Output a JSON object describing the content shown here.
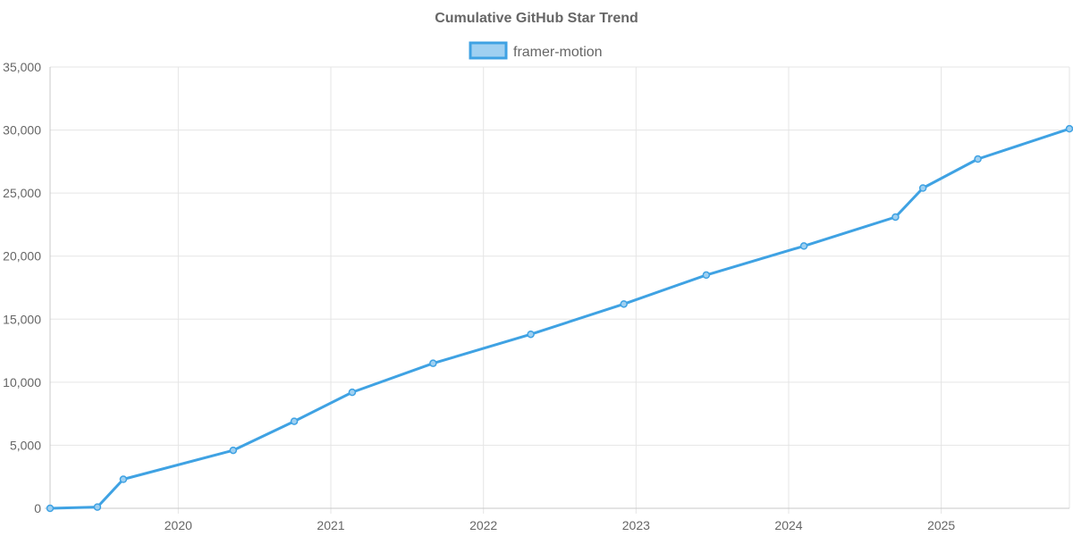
{
  "chart_data": {
    "type": "line",
    "title": "Cumulative GitHub Star Trend",
    "xlabel": "",
    "ylabel": "",
    "grid": true,
    "legend_position": "top-center",
    "x_axis": {
      "type": "time",
      "min": 2019.16,
      "max": 2025.84,
      "tick_values": [
        2020,
        2021,
        2022,
        2023,
        2024,
        2025
      ],
      "tick_labels": [
        "2020",
        "2021",
        "2022",
        "2023",
        "2024",
        "2025"
      ]
    },
    "y_axis": {
      "min": 0,
      "max": 35000,
      "tick_values": [
        0,
        5000,
        10000,
        15000,
        20000,
        25000,
        30000,
        35000
      ],
      "tick_labels": [
        "0",
        "5,000",
        "10,000",
        "15,000",
        "20,000",
        "25,000",
        "30,000",
        "35,000"
      ]
    },
    "series": [
      {
        "name": "framer-motion",
        "color": "#3fa2e3",
        "fill_color": "#9fd0f1",
        "points": [
          {
            "x": 2019.16,
            "y": 0
          },
          {
            "x": 2019.47,
            "y": 100
          },
          {
            "x": 2019.64,
            "y": 2300
          },
          {
            "x": 2020.36,
            "y": 4600
          },
          {
            "x": 2020.76,
            "y": 6900
          },
          {
            "x": 2021.14,
            "y": 9200
          },
          {
            "x": 2021.67,
            "y": 11500
          },
          {
            "x": 2022.31,
            "y": 13800
          },
          {
            "x": 2022.92,
            "y": 16200
          },
          {
            "x": 2023.46,
            "y": 18500
          },
          {
            "x": 2024.1,
            "y": 20800
          },
          {
            "x": 2024.7,
            "y": 23100
          },
          {
            "x": 2024.88,
            "y": 25400
          },
          {
            "x": 2025.24,
            "y": 27700
          },
          {
            "x": 2025.84,
            "y": 30100
          }
        ]
      }
    ]
  }
}
